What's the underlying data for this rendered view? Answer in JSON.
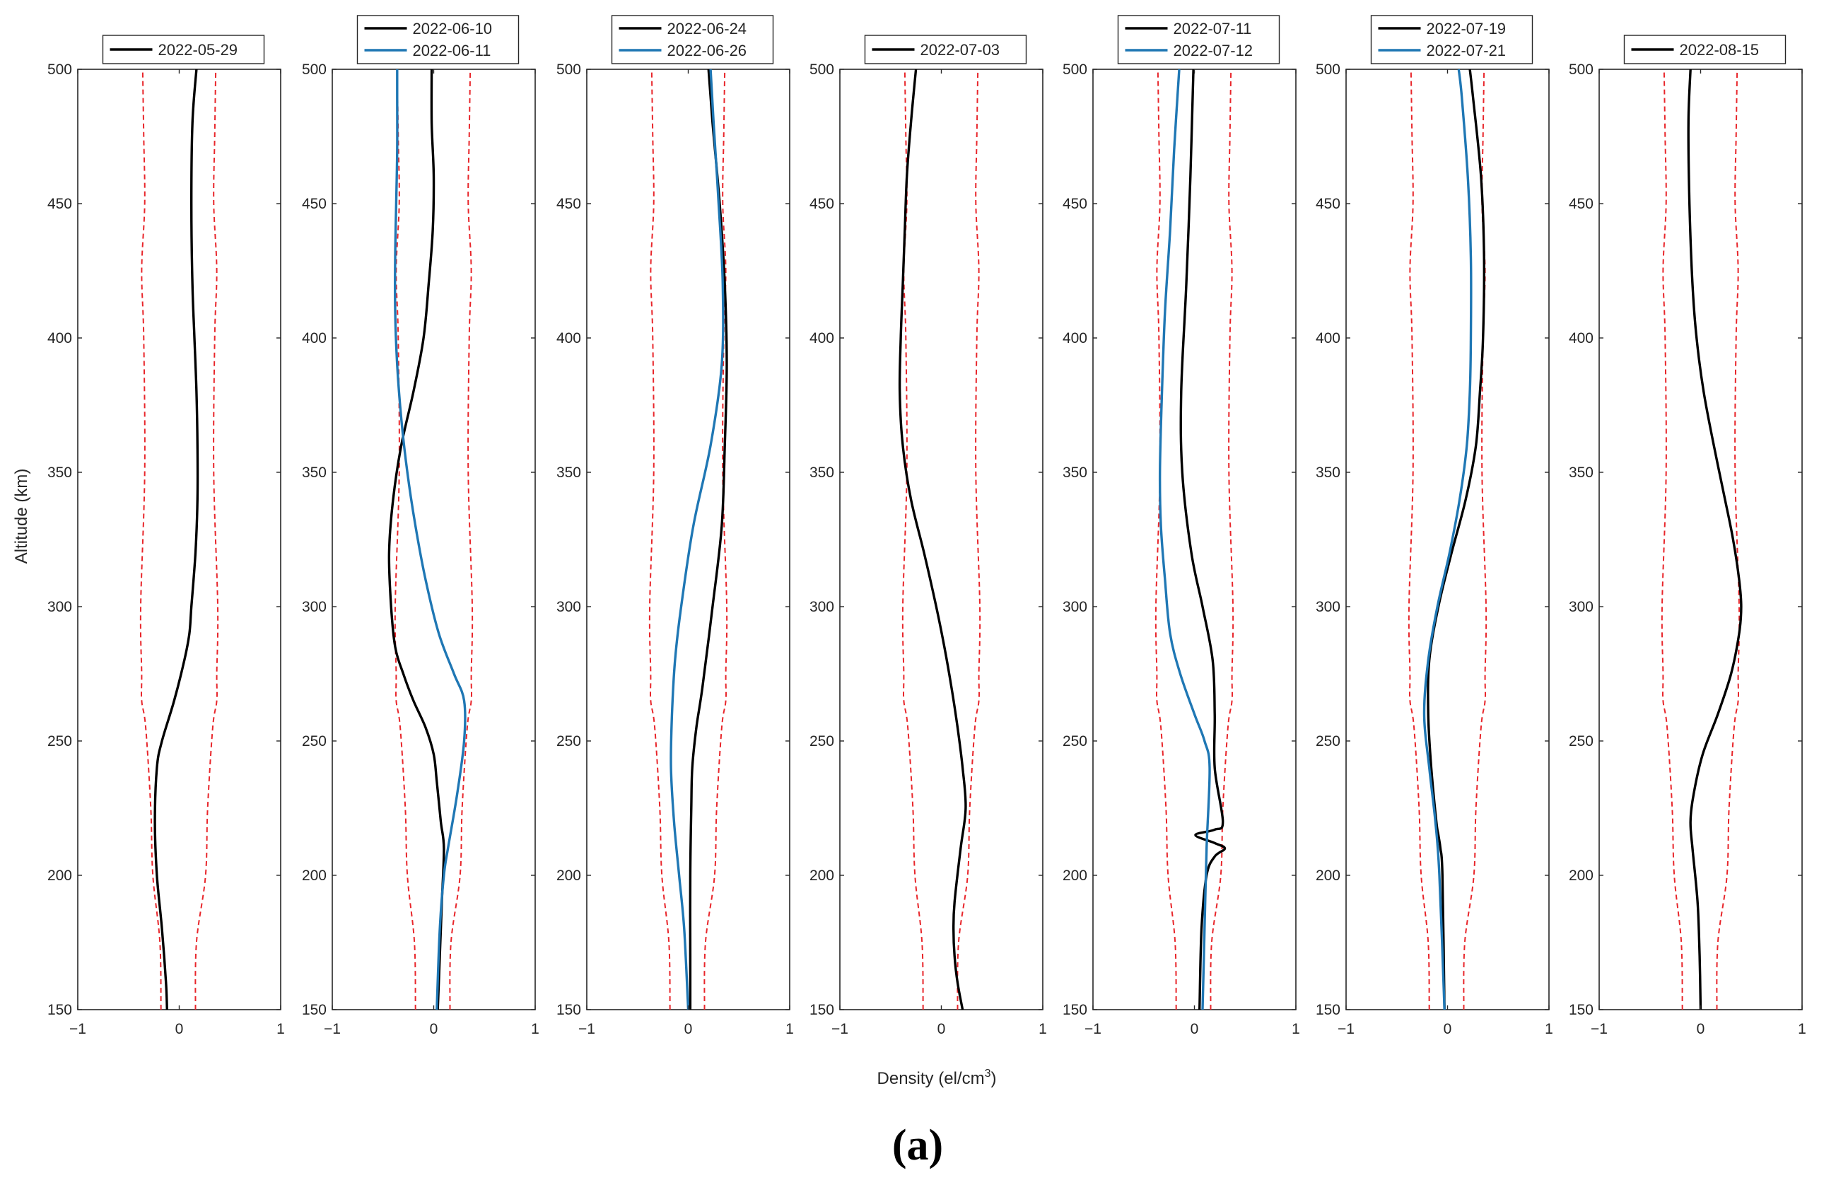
{
  "figure": {
    "ylabel": "Altitude (km)",
    "xlabel_main": "Density (el/cm",
    "xlabel_sup": "3",
    "xlabel_tail": ")",
    "panel_label": "(a)"
  },
  "chart_data": {
    "type": "line",
    "title": "",
    "xlabel": "Density (el/cm3)",
    "ylabel": "Altitude (km)",
    "xlim": [
      -1,
      1
    ],
    "ylim": [
      150,
      500
    ],
    "xticks": [
      -1,
      0,
      1
    ],
    "xtick_labels": [
      "−1",
      "0",
      "1"
    ],
    "yticks": [
      150,
      200,
      250,
      300,
      350,
      400,
      450,
      500
    ],
    "grid": false,
    "legend_position": "top-center",
    "colors": {
      "black": "#000000",
      "blue": "#1f77b4",
      "threshold": "#e8262b",
      "axes": "#262626"
    },
    "thresholds": {
      "name": "threshold",
      "left_x": [
        -0.18,
        -0.19,
        -0.26,
        -0.28,
        -0.33,
        -0.37,
        -0.37,
        -0.38,
        -0.34,
        -0.35,
        -0.37,
        -0.34,
        -0.35,
        -0.36
      ],
      "right_x": [
        0.16,
        0.17,
        0.26,
        0.28,
        0.33,
        0.37,
        0.37,
        0.38,
        0.34,
        0.35,
        0.37,
        0.34,
        0.35,
        0.36
      ],
      "altitudes": [
        150,
        175,
        200,
        225,
        255,
        265,
        275,
        300,
        350,
        400,
        425,
        450,
        475,
        500
      ]
    },
    "panels": [
      {
        "series": [
          {
            "name": "2022-05-29",
            "color": "black",
            "y": [
              150,
              160,
              180,
              200,
              220,
              240,
              250,
              265,
              280,
              290,
              300,
              320,
              340,
              360,
              380,
              400,
              420,
              450,
              480,
              500
            ],
            "x": [
              -0.12,
              -0.13,
              -0.17,
              -0.22,
              -0.24,
              -0.22,
              -0.17,
              -0.05,
              0.05,
              0.1,
              0.12,
              0.16,
              0.18,
              0.18,
              0.17,
              0.15,
              0.13,
              0.12,
              0.13,
              0.17
            ]
          }
        ]
      },
      {
        "series": [
          {
            "name": "2022-06-10",
            "color": "black",
            "y": [
              150,
              170,
              190,
              210,
              220,
              235,
              245,
              255,
              265,
              275,
              285,
              300,
              320,
              340,
              360,
              380,
              400,
              420,
              440,
              460,
              480,
              500
            ],
            "x": [
              0.04,
              0.06,
              0.08,
              0.1,
              0.07,
              0.03,
              0.0,
              -0.08,
              -0.2,
              -0.3,
              -0.38,
              -0.42,
              -0.44,
              -0.4,
              -0.32,
              -0.2,
              -0.1,
              -0.05,
              -0.01,
              0.0,
              -0.02,
              -0.02
            ]
          },
          {
            "name": "2022-06-11",
            "color": "blue",
            "y": [
              150,
              180,
              200,
              210,
              230,
              250,
              265,
              275,
              290,
              310,
              330,
              350,
              370,
              390,
              410,
              430,
              450,
              470,
              490,
              500
            ],
            "x": [
              0.03,
              0.06,
              0.1,
              0.14,
              0.23,
              0.3,
              0.3,
              0.2,
              0.05,
              -0.08,
              -0.18,
              -0.26,
              -0.32,
              -0.36,
              -0.38,
              -0.38,
              -0.37,
              -0.36,
              -0.36,
              -0.36
            ]
          }
        ]
      },
      {
        "series": [
          {
            "name": "2022-06-24",
            "color": "black",
            "y": [
              150,
              170,
              200,
              225,
              240,
              255,
              270,
              300,
              330,
              360,
              390,
              420,
              450,
              480,
              500
            ],
            "x": [
              0.02,
              0.02,
              0.02,
              0.03,
              0.04,
              0.08,
              0.14,
              0.24,
              0.33,
              0.36,
              0.38,
              0.36,
              0.31,
              0.24,
              0.2
            ]
          },
          {
            "name": "2022-06-26",
            "color": "blue",
            "y": [
              150,
              180,
              200,
              220,
              240,
              260,
              280,
              300,
              330,
              360,
              390,
              420,
              450,
              480,
              500
            ],
            "x": [
              0.0,
              -0.04,
              -0.09,
              -0.14,
              -0.17,
              -0.16,
              -0.13,
              -0.07,
              0.05,
              0.22,
              0.33,
              0.34,
              0.3,
              0.25,
              0.22
            ]
          }
        ]
      },
      {
        "series": [
          {
            "name": "2022-07-03",
            "color": "black",
            "y": [
              150,
              160,
              170,
              180,
              190,
              210,
              225,
              240,
              255,
              270,
              285,
              300,
              320,
              340,
              360,
              380,
              400,
              420,
              440,
              460,
              480,
              500
            ],
            "x": [
              0.21,
              0.16,
              0.13,
              0.12,
              0.13,
              0.19,
              0.24,
              0.21,
              0.16,
              0.1,
              0.03,
              -0.05,
              -0.17,
              -0.3,
              -0.38,
              -0.41,
              -0.4,
              -0.38,
              -0.36,
              -0.34,
              -0.3,
              -0.25
            ]
          }
        ]
      },
      {
        "series": [
          {
            "name": "2022-07-11",
            "color": "black",
            "y": [
              150,
              180,
              200,
              207,
              210,
              212,
              215,
              217,
              220,
              240,
              260,
              280,
              300,
              320,
              350,
              380,
              420,
              460,
              500
            ],
            "x": [
              0.05,
              0.07,
              0.12,
              0.2,
              0.3,
              0.2,
              0.01,
              0.2,
              0.28,
              0.2,
              0.2,
              0.18,
              0.08,
              -0.03,
              -0.12,
              -0.13,
              -0.08,
              -0.04,
              -0.01
            ]
          },
          {
            "name": "2022-07-12",
            "color": "blue",
            "y": [
              150,
              180,
              210,
              240,
              250,
              260,
              275,
              290,
              310,
              330,
              350,
              380,
              410,
              440,
              470,
              500
            ],
            "x": [
              0.08,
              0.1,
              0.12,
              0.15,
              0.1,
              0.0,
              -0.14,
              -0.24,
              -0.29,
              -0.33,
              -0.34,
              -0.32,
              -0.29,
              -0.24,
              -0.2,
              -0.15
            ]
          }
        ]
      },
      {
        "series": [
          {
            "name": "2022-07-19",
            "color": "black",
            "y": [
              150,
              200,
              210,
              215,
              220,
              240,
              260,
              280,
              300,
              320,
              340,
              360,
              380,
              400,
              430,
              460,
              490,
              500
            ],
            "x": [
              -0.03,
              -0.05,
              -0.07,
              -0.09,
              -0.11,
              -0.16,
              -0.19,
              -0.18,
              -0.09,
              0.04,
              0.18,
              0.28,
              0.32,
              0.35,
              0.36,
              0.33,
              0.25,
              0.22
            ]
          },
          {
            "name": "2022-07-21",
            "color": "blue",
            "y": [
              150,
              200,
              220,
              240,
              260,
              280,
              300,
              320,
              340,
              360,
              380,
              400,
              430,
              460,
              490,
              500
            ],
            "x": [
              -0.03,
              -0.08,
              -0.12,
              -0.18,
              -0.23,
              -0.19,
              -0.1,
              0.02,
              0.12,
              0.19,
              0.22,
              0.23,
              0.23,
              0.2,
              0.14,
              0.11
            ]
          }
        ]
      },
      {
        "series": [
          {
            "name": "2022-08-15",
            "color": "black",
            "y": [
              150,
              170,
              190,
              210,
              220,
              230,
              245,
              260,
              275,
              290,
              300,
              310,
              325,
              340,
              360,
              380,
              400,
              420,
              450,
              480,
              500
            ],
            "x": [
              0.0,
              -0.01,
              -0.03,
              -0.08,
              -0.1,
              -0.07,
              0.02,
              0.17,
              0.3,
              0.38,
              0.4,
              0.38,
              0.32,
              0.24,
              0.13,
              0.03,
              -0.04,
              -0.08,
              -0.11,
              -0.12,
              -0.1
            ]
          }
        ]
      }
    ]
  }
}
